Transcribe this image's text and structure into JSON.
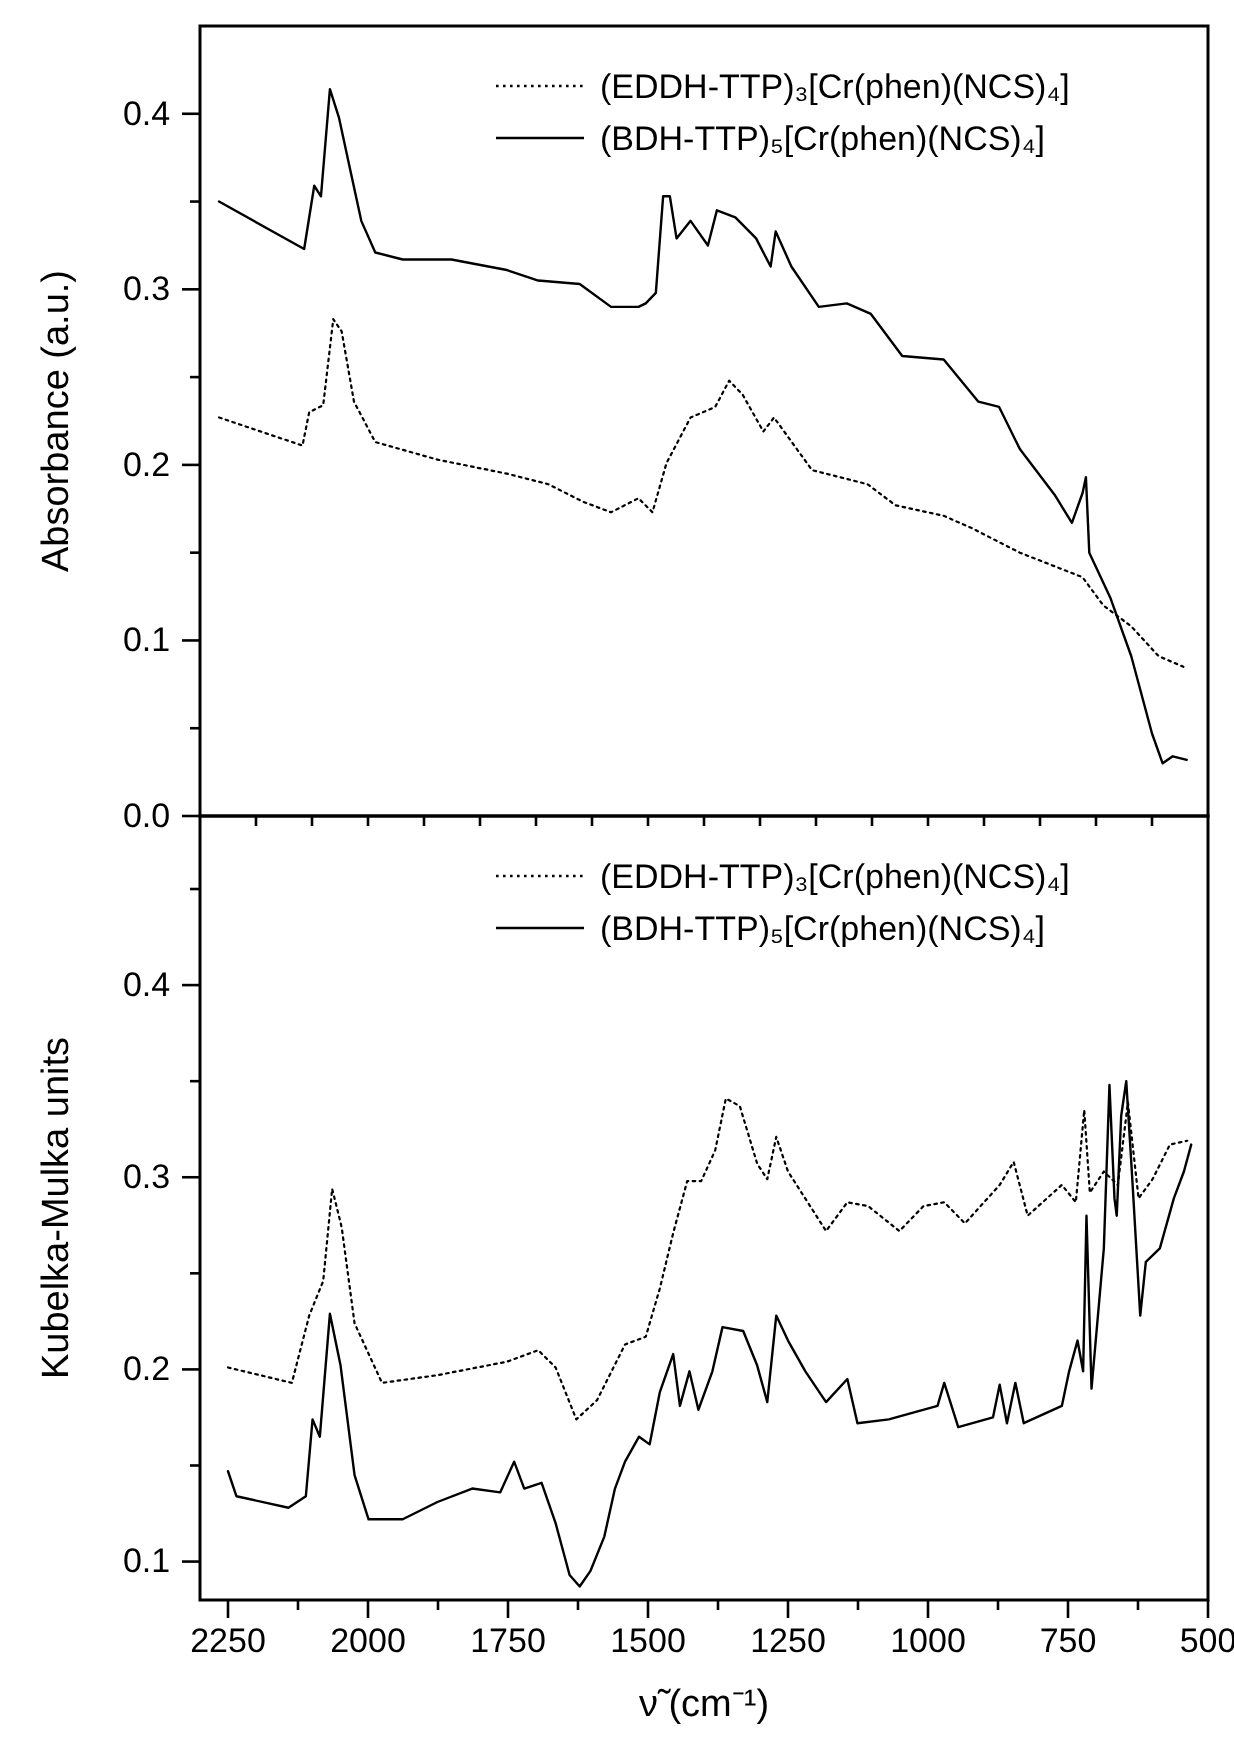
{
  "chart_data": [
    {
      "type": "line",
      "ylabel": "Absorbance (a.u.)",
      "xlim": [
        2300,
        500
      ],
      "ylim": [
        0,
        0.45
      ],
      "xticks": [
        {
          "value": 2200,
          "label": null
        },
        {
          "value": 2100,
          "label": null
        },
        {
          "value": 2000,
          "label": null
        },
        {
          "value": 1900,
          "label": null
        },
        {
          "value": 1800,
          "label": null
        },
        {
          "value": 1700,
          "label": null
        },
        {
          "value": 1600,
          "label": null
        },
        {
          "value": 1500,
          "label": null
        },
        {
          "value": 1400,
          "label": null
        },
        {
          "value": 1300,
          "label": null
        },
        {
          "value": 1200,
          "label": null
        },
        {
          "value": 1100,
          "label": null
        },
        {
          "value": 1000,
          "label": null
        },
        {
          "value": 900,
          "label": null
        },
        {
          "value": 800,
          "label": null
        },
        {
          "value": 700,
          "label": null
        },
        {
          "value": 600,
          "label": null
        }
      ],
      "yticks": [
        {
          "value": 0,
          "label": "0.0"
        },
        {
          "value": 0.05,
          "label": null
        },
        0.1,
        {
          "value": 0.15,
          "label": null
        },
        0.2,
        {
          "value": 0.25,
          "label": null
        },
        0.3,
        {
          "value": 0.35,
          "label": null
        },
        0.4
      ],
      "tick_labels": "y",
      "grid": false,
      "legend": "top right",
      "marker": "none",
      "series": [
        {
          "name": "(EDDH-TTP)₃[Cr(phen)(NCS)₄]",
          "color": "#000000",
          "line_style": "dotted",
          "x": [
            2266,
            2117,
            2105,
            2080,
            2062,
            2047,
            2025,
            1987,
            1876,
            1752,
            1678,
            1616,
            1566,
            1517,
            1492,
            1467,
            1424,
            1380,
            1355,
            1331,
            1294,
            1275,
            1207,
            1108,
            1058,
            972,
            922,
            836,
            724,
            687,
            637,
            588,
            544
          ],
          "values": [
            0.227,
            0.211,
            0.23,
            0.234,
            0.283,
            0.276,
            0.236,
            0.213,
            0.203,
            0.195,
            0.189,
            0.179,
            0.173,
            0.181,
            0.173,
            0.201,
            0.227,
            0.233,
            0.248,
            0.24,
            0.219,
            0.227,
            0.197,
            0.189,
            0.177,
            0.171,
            0.164,
            0.15,
            0.136,
            0.12,
            0.108,
            0.091,
            0.085
          ]
        },
        {
          "name": "(BDH-TTP)₅[Cr(phen)(NCS)₄]",
          "color": "#000000",
          "line_style": "solid",
          "x": [
            2266,
            2114,
            2096,
            2084,
            2068,
            2052,
            2031,
            2012,
            1987,
            1938,
            1851,
            1752,
            1696,
            1622,
            1566,
            1517,
            1504,
            1486,
            1473,
            1461,
            1449,
            1424,
            1393,
            1377,
            1344,
            1307,
            1281,
            1272,
            1244,
            1195,
            1145,
            1102,
            1046,
            972,
            910,
            873,
            836,
            774,
            743,
            724,
            718,
            712,
            674,
            637,
            600,
            581,
            563,
            538
          ],
          "values": [
            0.35,
            0.323,
            0.359,
            0.353,
            0.414,
            0.398,
            0.367,
            0.339,
            0.321,
            0.317,
            0.317,
            0.311,
            0.305,
            0.303,
            0.29,
            0.29,
            0.292,
            0.298,
            0.353,
            0.353,
            0.329,
            0.339,
            0.325,
            0.345,
            0.341,
            0.329,
            0.313,
            0.333,
            0.313,
            0.29,
            0.292,
            0.286,
            0.262,
            0.26,
            0.236,
            0.233,
            0.209,
            0.183,
            0.167,
            0.184,
            0.193,
            0.15,
            0.124,
            0.091,
            0.047,
            0.03,
            0.034,
            0.032
          ]
        }
      ]
    },
    {
      "type": "line",
      "xlabel": "ν̃ (cm⁻¹)",
      "ylabel": "Kubelka-Mulka units",
      "xlim": [
        2300,
        500
      ],
      "ylim": [
        0.08,
        0.488
      ],
      "xticks": [
        2250,
        {
          "value": 2125,
          "label": null
        },
        2000,
        {
          "value": 1875,
          "label": null
        },
        1750,
        {
          "value": 1625,
          "label": null
        },
        1500,
        {
          "value": 1375,
          "label": null
        },
        1250,
        {
          "value": 1125,
          "label": null
        },
        1000,
        {
          "value": 875,
          "label": null
        },
        750,
        {
          "value": 625,
          "label": null
        },
        500
      ],
      "yticks": [
        0.1,
        {
          "value": 0.15,
          "label": null
        },
        0.2,
        {
          "value": 0.25,
          "label": null
        },
        0.3,
        {
          "value": 0.35,
          "label": null
        },
        0.4,
        {
          "value": 0.45,
          "label": null
        }
      ],
      "grid": false,
      "legend": "top right",
      "marker": "none",
      "series": [
        {
          "name": "(EDDH-TTP)₃[Cr(phen)(NCS)₄]",
          "color": "#000000",
          "line_style": "dotted",
          "x": [
            2250,
            2136,
            2105,
            2080,
            2064,
            2047,
            2024,
            1975,
            1876,
            1752,
            1696,
            1665,
            1628,
            1591,
            1541,
            1504,
            1479,
            1455,
            1430,
            1405,
            1380,
            1361,
            1336,
            1305,
            1287,
            1271,
            1250,
            1182,
            1144,
            1107,
            1051,
            1008,
            971,
            934,
            872,
            847,
            822,
            761,
            736,
            721,
            711,
            686,
            661,
            643,
            624,
            599,
            568,
            537
          ],
          "values": [
            0.201,
            0.193,
            0.228,
            0.246,
            0.294,
            0.274,
            0.224,
            0.193,
            0.197,
            0.204,
            0.21,
            0.201,
            0.174,
            0.184,
            0.213,
            0.217,
            0.242,
            0.271,
            0.298,
            0.298,
            0.314,
            0.341,
            0.337,
            0.307,
            0.299,
            0.321,
            0.303,
            0.272,
            0.287,
            0.285,
            0.272,
            0.285,
            0.287,
            0.276,
            0.296,
            0.308,
            0.28,
            0.296,
            0.287,
            0.335,
            0.292,
            0.303,
            0.296,
            0.339,
            0.289,
            0.299,
            0.317,
            0.319
          ]
        },
        {
          "name": "(BDH-TTP)₅[Cr(phen)(NCS)₄]",
          "color": "#000000",
          "line_style": "solid",
          "x": [
            2250,
            2235,
            2142,
            2111,
            2099,
            2086,
            2068,
            2049,
            2024,
            1999,
            1938,
            1876,
            1814,
            1764,
            1739,
            1721,
            1690,
            1665,
            1640,
            1622,
            1603,
            1578,
            1559,
            1541,
            1516,
            1497,
            1479,
            1455,
            1443,
            1426,
            1410,
            1385,
            1367,
            1330,
            1305,
            1287,
            1271,
            1250,
            1219,
            1182,
            1144,
            1126,
            1070,
            1033,
            983,
            971,
            946,
            884,
            872,
            859,
            844,
            829,
            761,
            748,
            733,
            723,
            717,
            708,
            686,
            676,
            667,
            663,
            655,
            646,
            636,
            621,
            611,
            586,
            561,
            543,
            530
          ],
          "values": [
            0.147,
            0.134,
            0.128,
            0.134,
            0.174,
            0.165,
            0.229,
            0.202,
            0.145,
            0.122,
            0.122,
            0.131,
            0.138,
            0.136,
            0.152,
            0.138,
            0.141,
            0.12,
            0.093,
            0.087,
            0.095,
            0.113,
            0.138,
            0.152,
            0.165,
            0.161,
            0.188,
            0.208,
            0.181,
            0.199,
            0.179,
            0.199,
            0.222,
            0.22,
            0.202,
            0.183,
            0.228,
            0.215,
            0.199,
            0.183,
            0.195,
            0.172,
            0.174,
            0.177,
            0.181,
            0.193,
            0.17,
            0.175,
            0.192,
            0.172,
            0.193,
            0.172,
            0.181,
            0.199,
            0.215,
            0.199,
            0.28,
            0.19,
            0.263,
            0.348,
            0.289,
            0.28,
            0.332,
            0.35,
            0.303,
            0.228,
            0.256,
            0.263,
            0.289,
            0.303,
            0.317
          ]
        }
      ]
    }
  ]
}
